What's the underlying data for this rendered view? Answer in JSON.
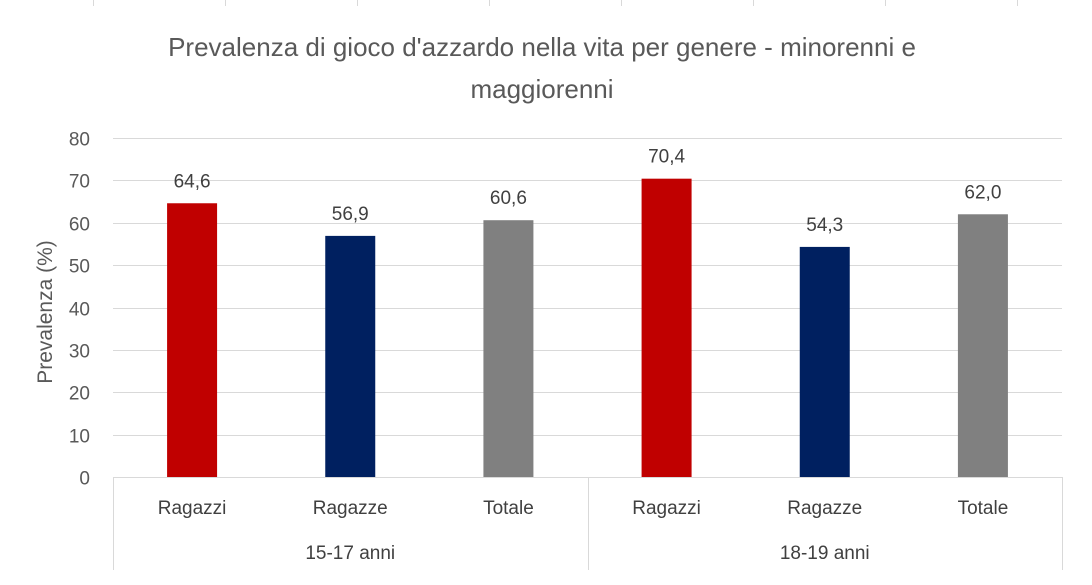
{
  "chart_data": {
    "type": "bar",
    "title": "Prevalenza di gioco d'azzardo nella vita per genere - minorenni e maggiorenni",
    "title_lines": [
      "Prevalenza di gioco d'azzardo nella vita per genere - minorenni e",
      "maggiorenni"
    ],
    "ylabel": "Prevalenza (%)",
    "xlabel": "",
    "ylim": [
      0,
      80
    ],
    "yticks": [
      0,
      10,
      20,
      30,
      40,
      50,
      60,
      70,
      80
    ],
    "grid": true,
    "legend": "none",
    "groups": [
      {
        "name": "15-17 anni",
        "bars": [
          {
            "category": "Ragazzi",
            "value": 64.6,
            "label": "64,6",
            "color": "#C00000"
          },
          {
            "category": "Ragazze",
            "value": 56.9,
            "label": "56,9",
            "color": "#002060"
          },
          {
            "category": "Totale",
            "value": 60.6,
            "label": "60,6",
            "color": "#808080"
          }
        ]
      },
      {
        "name": "18-19 anni",
        "bars": [
          {
            "category": "Ragazzi",
            "value": 70.4,
            "label": "70,4",
            "color": "#C00000"
          },
          {
            "category": "Ragazze",
            "value": 54.3,
            "label": "54,3",
            "color": "#002060"
          },
          {
            "category": "Totale",
            "value": 62.0,
            "label": "62,0",
            "color": "#808080"
          }
        ]
      }
    ]
  }
}
